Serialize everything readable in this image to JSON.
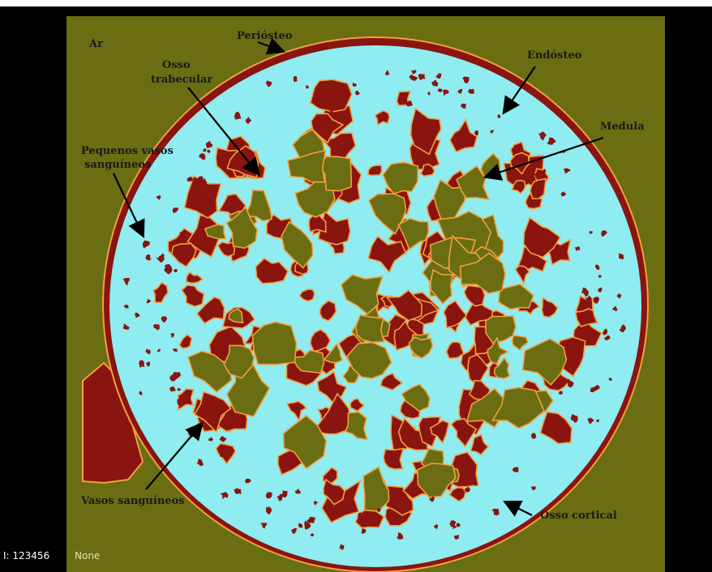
{
  "labels": {
    "ar": "Ar",
    "periosteo": "Periósteo",
    "osso_trabecular_line1": "Osso",
    "osso_trabecular_line2": "trabecular",
    "endosteo": "Endósteo",
    "medula": "Medula",
    "pequenos_vasos_line1": "Pequenos vasos",
    "pequenos_vasos_line2": "sanguíneos",
    "vasos_sanguineos": "Vasos sanguíneos",
    "osso_cortical": "Osso cortical"
  },
  "status_bar": {
    "prefix": "I: 123456",
    "value": "None"
  },
  "colors": {
    "frame": "#000000",
    "background_olive": "#6b6d12",
    "cortical_bone": "#8fecf0",
    "red_region": "#8a1410",
    "orange_edge": "#f0a040",
    "marrow": "#6b6d12",
    "outside": "#ffffff"
  }
}
